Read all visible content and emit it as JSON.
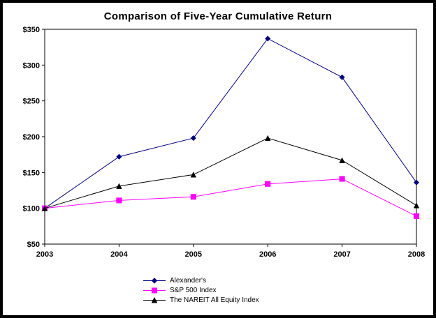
{
  "chart": {
    "title": "Comparison of Five-Year Cumulative Return"
  },
  "chart_data": {
    "type": "line",
    "title": "Comparison of Five-Year Cumulative Return",
    "x": [
      2003,
      2004,
      2005,
      2006,
      2007,
      2008
    ],
    "series": [
      {
        "name": "Alexander's",
        "color": "#000080",
        "marker": "diamond",
        "values": [
          100,
          172,
          198,
          337,
          283,
          136
        ]
      },
      {
        "name": "S&P 500 Index",
        "color": "#FF00FF",
        "marker": "square",
        "values": [
          100,
          111,
          116,
          134,
          141,
          89
        ]
      },
      {
        "name": "The NAREIT All Equity Index",
        "color": "#000000",
        "marker": "triangle",
        "values": [
          100,
          131,
          147,
          198,
          167,
          104
        ]
      }
    ],
    "xlabel": "",
    "ylabel": "",
    "ylim": [
      50,
      350
    ],
    "ytick_step": 50,
    "ytick_prefix": "$",
    "grid": false,
    "legend_position": "bottom"
  }
}
